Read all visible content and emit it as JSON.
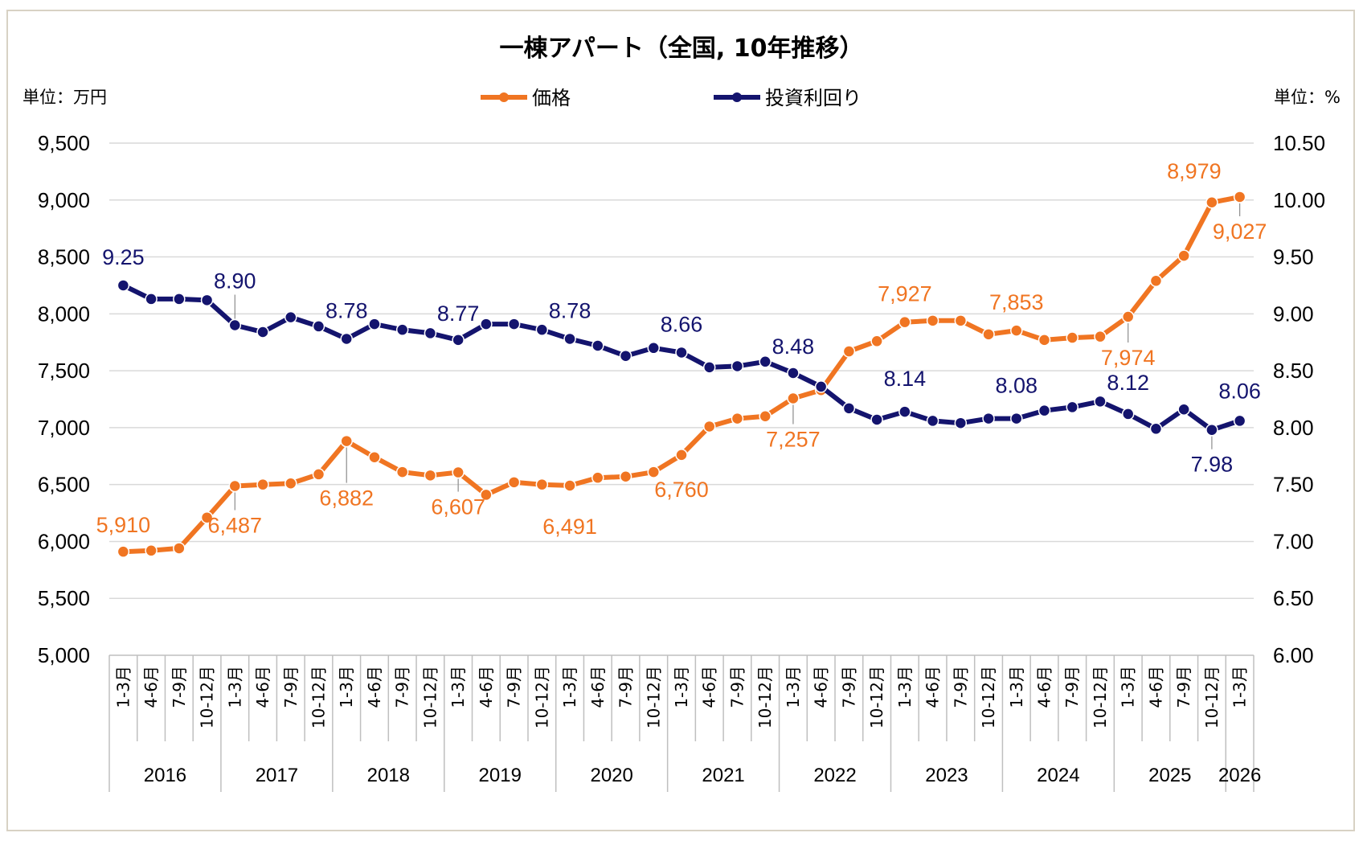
{
  "chart_data": {
    "type": "line",
    "title": "一棟アパート（全国, 10年推移）",
    "left_unit": "単位：万円",
    "right_unit": "単位：%",
    "left_axis": {
      "min": 5000,
      "max": 9500,
      "step": 500,
      "ticks": [
        "5,000",
        "5,500",
        "6,000",
        "6,500",
        "7,000",
        "7,500",
        "8,000",
        "8,500",
        "9,000",
        "9,500"
      ]
    },
    "right_axis": {
      "min": 6.0,
      "max": 10.5,
      "step": 0.5,
      "ticks": [
        "6.00",
        "6.50",
        "7.00",
        "7.50",
        "8.00",
        "8.50",
        "9.00",
        "9.50",
        "10.00",
        "10.50"
      ]
    },
    "grid": true,
    "legend_position": "top-center",
    "quarters": [
      "1-3月",
      "4-6月",
      "7-9月",
      "10-12月",
      "1-3月",
      "4-6月",
      "7-9月",
      "10-12月",
      "1-3月",
      "4-6月",
      "7-9月",
      "10-12月",
      "1-3月",
      "4-6月",
      "7-9月",
      "10-12月",
      "1-3月",
      "4-6月",
      "7-9月",
      "10-12月",
      "1-3月",
      "4-6月",
      "7-9月",
      "10-12月",
      "1-3月",
      "4-6月",
      "7-9月",
      "10-12月",
      "1-3月",
      "4-6月",
      "7-9月",
      "10-12月",
      "1-3月",
      "4-6月",
      "7-9月",
      "10-12月",
      "1-3月",
      "4-6月",
      "7-9月",
      "10-12月",
      "1-3月"
    ],
    "years": [
      {
        "label": "2016",
        "count": 4
      },
      {
        "label": "2017",
        "count": 4
      },
      {
        "label": "2018",
        "count": 4
      },
      {
        "label": "2019",
        "count": 4
      },
      {
        "label": "2020",
        "count": 4
      },
      {
        "label": "2021",
        "count": 4
      },
      {
        "label": "2022",
        "count": 4
      },
      {
        "label": "2023",
        "count": 4
      },
      {
        "label": "2024",
        "count": 4
      },
      {
        "label": "2025",
        "count": 4
      },
      {
        "label": "2026",
        "count": 1
      }
    ],
    "series": [
      {
        "name": "価格",
        "axis": "left",
        "color": "#f07522",
        "values": [
          5910,
          5920,
          5940,
          6210,
          6487,
          6500,
          6510,
          6590,
          6882,
          6740,
          6610,
          6580,
          6607,
          6410,
          6520,
          6500,
          6491,
          6560,
          6570,
          6610,
          6760,
          7010,
          7080,
          7100,
          7257,
          7330,
          7670,
          7760,
          7927,
          7940,
          7940,
          7820,
          7853,
          7770,
          7790,
          7800,
          7974,
          8290,
          8510,
          8979,
          9027
        ],
        "labels": [
          {
            "index": 0,
            "text": "5,910"
          },
          {
            "index": 4,
            "text": "6,487"
          },
          {
            "index": 8,
            "text": "6,882"
          },
          {
            "index": 12,
            "text": "6,607"
          },
          {
            "index": 16,
            "text": "6,491"
          },
          {
            "index": 20,
            "text": "6,760"
          },
          {
            "index": 24,
            "text": "7,257"
          },
          {
            "index": 28,
            "text": "7,927"
          },
          {
            "index": 32,
            "text": "7,853"
          },
          {
            "index": 36,
            "text": "7,974"
          },
          {
            "index": 39,
            "text": "8,979"
          },
          {
            "index": 40,
            "text": "9,027"
          }
        ]
      },
      {
        "name": "投資利回り",
        "axis": "right",
        "color": "#14146e",
        "values": [
          9.25,
          9.13,
          9.13,
          9.12,
          8.9,
          8.84,
          8.97,
          8.89,
          8.78,
          8.91,
          8.86,
          8.83,
          8.77,
          8.91,
          8.91,
          8.86,
          8.78,
          8.72,
          8.63,
          8.7,
          8.66,
          8.53,
          8.54,
          8.58,
          8.48,
          8.36,
          8.17,
          8.07,
          8.14,
          8.06,
          8.04,
          8.08,
          8.08,
          8.15,
          8.18,
          8.23,
          8.12,
          7.99,
          8.16,
          7.98,
          8.06
        ],
        "labels": [
          {
            "index": 0,
            "text": "9.25"
          },
          {
            "index": 4,
            "text": "8.90"
          },
          {
            "index": 8,
            "text": "8.78"
          },
          {
            "index": 12,
            "text": "8.77"
          },
          {
            "index": 16,
            "text": "8.78"
          },
          {
            "index": 20,
            "text": "8.66"
          },
          {
            "index": 24,
            "text": "8.48"
          },
          {
            "index": 28,
            "text": "8.14"
          },
          {
            "index": 32,
            "text": "8.08"
          },
          {
            "index": 36,
            "text": "8.12"
          },
          {
            "index": 39,
            "text": "7.98"
          },
          {
            "index": 40,
            "text": "8.06"
          }
        ]
      }
    ]
  }
}
